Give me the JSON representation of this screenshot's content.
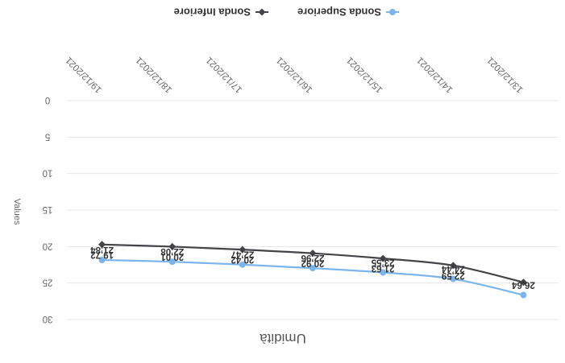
{
  "chart_data": {
    "type": "line",
    "categories": [
      "13/12/2021",
      "14/12/2021",
      "15/12/2021",
      "16/12/2021",
      "17/12/2021",
      "18/12/2021",
      "19/12/2021"
    ],
    "series": [
      {
        "name": "Sonda Superiore",
        "values": [
          26.64,
          24.44,
          23.55,
          22.96,
          22.47,
          22.08,
          21.84
        ],
        "color": "#7cb5ec",
        "marker": "circle"
      },
      {
        "name": "Sonda Inferiore",
        "values": [
          24.9,
          22.59,
          21.63,
          20.92,
          20.42,
          20.01,
          19.72
        ],
        "color": "#434348",
        "marker": "diamond"
      }
    ],
    "data_labels": [
      [
        "26,64",
        "24,44",
        "23,55",
        "22,96",
        "22,47",
        "22,08",
        "21,84"
      ],
      [
        "",
        "22,59",
        "21,63",
        "20,92",
        "20,42",
        "20,01",
        "19,72"
      ]
    ],
    "title": "Umidità",
    "xlabel": "",
    "ylabel": "Values",
    "ylim": [
      0,
      30
    ],
    "yticks": [
      "0",
      "5",
      "10",
      "15",
      "20",
      "25",
      "30"
    ],
    "grid": true,
    "legend": "bottom",
    "orientation_note_rotation_deg": 180
  }
}
